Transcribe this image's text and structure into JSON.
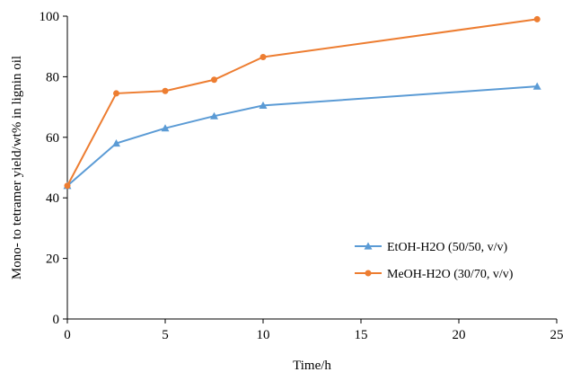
{
  "chart_data": {
    "type": "line",
    "title": "",
    "xlabel": "Time/h",
    "ylabel": "Mono- to tetramer yield/wt% in lignin oil",
    "xlim": [
      0,
      25
    ],
    "ylim": [
      0,
      100
    ],
    "xticks": [
      0,
      5,
      10,
      15,
      20,
      25
    ],
    "yticks": [
      0,
      20,
      40,
      60,
      80,
      100
    ],
    "grid": false,
    "legend_position": "bottom-right",
    "series": [
      {
        "name": "EtOH-H2O (50/50, v/v)",
        "color": "#5b9bd5",
        "marker": "triangle",
        "x": [
          0,
          2.5,
          5,
          7.5,
          10,
          24
        ],
        "y": [
          44,
          58,
          63,
          67,
          70.5,
          76.8
        ]
      },
      {
        "name": "MeOH-H2O (30/70, v/v)",
        "color": "#ed7d31",
        "marker": "circle",
        "x": [
          0,
          2.5,
          5,
          7.5,
          10,
          24
        ],
        "y": [
          44,
          74.5,
          75.3,
          79,
          86.5,
          99
        ]
      }
    ]
  }
}
